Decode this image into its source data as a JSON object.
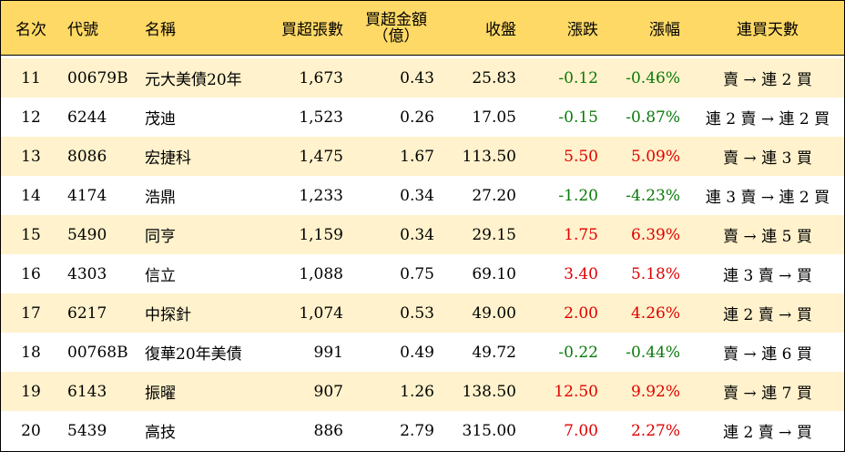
{
  "headers": {
    "rank": "名次",
    "code": "代號",
    "name": "名稱",
    "net_buy_volume": "買超張數",
    "net_buy_amount_line1": "買超金額",
    "net_buy_amount_line2": "（億）",
    "close": "收盤",
    "change": "漲跌",
    "change_pct": "漲幅",
    "streak": "連買天數"
  },
  "colors": {
    "header_bg": "#ffd966",
    "alt_row_bg": "#fff2cc",
    "up": "#e00000",
    "down": "#0a7a0a"
  },
  "rows": [
    {
      "rank": "11",
      "code": "00679B",
      "name": "元大美債20年",
      "volume": "1,673",
      "amount": "0.43",
      "close": "25.83",
      "change": "-0.12",
      "pct": "-0.46%",
      "streak": "賣 → 連 2 買",
      "dir": "down"
    },
    {
      "rank": "12",
      "code": "6244",
      "name": "茂迪",
      "volume": "1,523",
      "amount": "0.26",
      "close": "17.05",
      "change": "-0.15",
      "pct": "-0.87%",
      "streak": "連 2 賣 → 連 2 買",
      "dir": "down"
    },
    {
      "rank": "13",
      "code": "8086",
      "name": "宏捷科",
      "volume": "1,475",
      "amount": "1.67",
      "close": "113.50",
      "change": "5.50",
      "pct": "5.09%",
      "streak": "賣 → 連 3 買",
      "dir": "up"
    },
    {
      "rank": "14",
      "code": "4174",
      "name": "浩鼎",
      "volume": "1,233",
      "amount": "0.34",
      "close": "27.20",
      "change": "-1.20",
      "pct": "-4.23%",
      "streak": "連 3 賣 → 連 2 買",
      "dir": "down"
    },
    {
      "rank": "15",
      "code": "5490",
      "name": "同亨",
      "volume": "1,159",
      "amount": "0.34",
      "close": "29.15",
      "change": "1.75",
      "pct": "6.39%",
      "streak": "賣 → 連 5 買",
      "dir": "up"
    },
    {
      "rank": "16",
      "code": "4303",
      "name": "信立",
      "volume": "1,088",
      "amount": "0.75",
      "close": "69.10",
      "change": "3.40",
      "pct": "5.18%",
      "streak": "連 3 賣 → 買",
      "dir": "up"
    },
    {
      "rank": "17",
      "code": "6217",
      "name": "中探針",
      "volume": "1,074",
      "amount": "0.53",
      "close": "49.00",
      "change": "2.00",
      "pct": "4.26%",
      "streak": "連 2 賣 → 買",
      "dir": "up"
    },
    {
      "rank": "18",
      "code": "00768B",
      "name": "復華20年美債",
      "volume": "991",
      "amount": "0.49",
      "close": "49.72",
      "change": "-0.22",
      "pct": "-0.44%",
      "streak": "賣 → 連 6 買",
      "dir": "down"
    },
    {
      "rank": "19",
      "code": "6143",
      "name": "振曜",
      "volume": "907",
      "amount": "1.26",
      "close": "138.50",
      "change": "12.50",
      "pct": "9.92%",
      "streak": "賣 → 連 7 買",
      "dir": "up"
    },
    {
      "rank": "20",
      "code": "5439",
      "name": "高技",
      "volume": "886",
      "amount": "2.79",
      "close": "315.00",
      "change": "7.00",
      "pct": "2.27%",
      "streak": "連 2 賣 → 買",
      "dir": "up"
    }
  ]
}
